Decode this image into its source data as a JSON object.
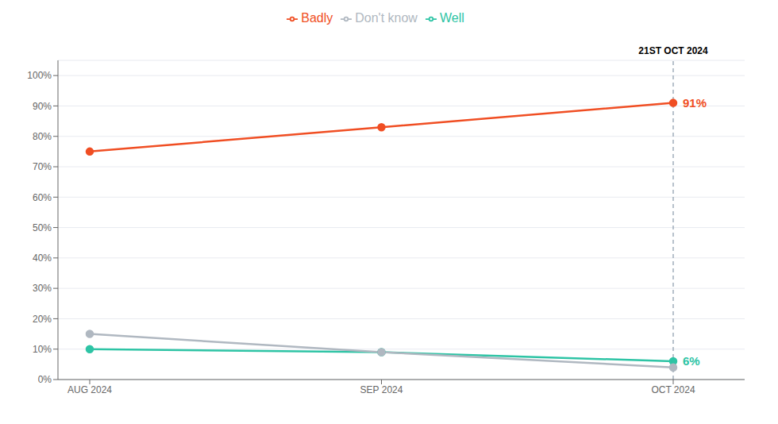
{
  "chart_data": {
    "type": "line",
    "categories": [
      "AUG 2024",
      "SEP 2024",
      "OCT 2024"
    ],
    "series": [
      {
        "name": "Well",
        "color": "#2ec4a5",
        "marker": "circle",
        "values": [
          10,
          9,
          6
        ]
      },
      {
        "name": "Badly",
        "color": "#f04e23",
        "marker": "circle",
        "values": [
          75,
          83,
          91
        ]
      },
      {
        "name": "Don't know",
        "color": "#b0b8c1",
        "marker": "circle",
        "values": [
          15,
          9,
          4
        ]
      }
    ],
    "ylim": [
      0,
      105
    ],
    "yticks": [
      {
        "value": 0,
        "label": "0%"
      },
      {
        "value": 10,
        "label": "10%"
      },
      {
        "value": 20,
        "label": "20%"
      },
      {
        "value": 30,
        "label": "30%"
      },
      {
        "value": 40,
        "label": "40%"
      },
      {
        "value": 50,
        "label": "50%"
      },
      {
        "value": 60,
        "label": "60%"
      },
      {
        "value": 70,
        "label": "70%"
      },
      {
        "value": 80,
        "label": "80%"
      },
      {
        "value": 90,
        "label": "90%"
      },
      {
        "value": 100,
        "label": "100%"
      }
    ],
    "grid": true,
    "legend": "top",
    "annotations": [
      {
        "text": "21ST OCT 2024",
        "x": "OCT 2024"
      },
      {
        "text": "91%",
        "x": "OCT 2024",
        "y": 91,
        "color": "#f04e23"
      },
      {
        "text": "6%",
        "x": "OCT 2024",
        "y": 6,
        "color": "#2ec4a5"
      }
    ]
  }
}
